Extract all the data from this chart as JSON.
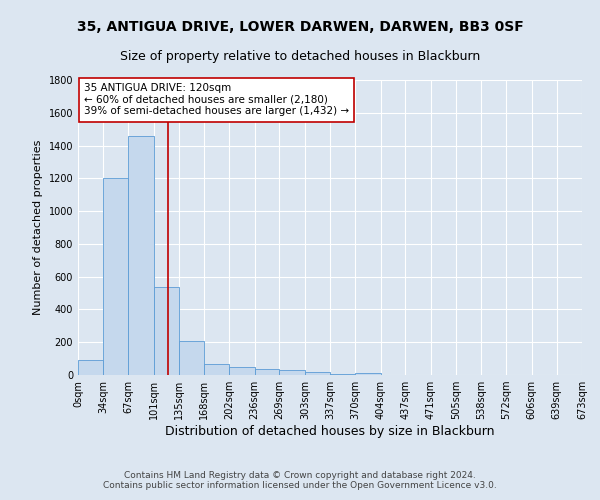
{
  "title1": "35, ANTIGUA DRIVE, LOWER DARWEN, DARWEN, BB3 0SF",
  "title2": "Size of property relative to detached houses in Blackburn",
  "xlabel": "Distribution of detached houses by size in Blackburn",
  "ylabel": "Number of detached properties",
  "bar_edges": [
    0,
    34,
    67,
    101,
    135,
    168,
    202,
    236,
    269,
    303,
    337,
    370,
    404,
    437,
    471,
    505,
    538,
    572,
    606,
    639,
    673
  ],
  "bar_heights": [
    90,
    1200,
    1460,
    535,
    205,
    68,
    50,
    38,
    28,
    20,
    5,
    12,
    0,
    0,
    0,
    0,
    0,
    0,
    0,
    0
  ],
  "bar_color": "#c5d8ed",
  "bar_edgecolor": "#5b9bd5",
  "property_size": 120,
  "vline_color": "#c00000",
  "annotation_line1": "35 ANTIGUA DRIVE: 120sqm",
  "annotation_line2": "← 60% of detached houses are smaller (2,180)",
  "annotation_line3": "39% of semi-detached houses are larger (1,432) →",
  "annotation_box_edgecolor": "#c00000",
  "annotation_box_facecolor": "#ffffff",
  "ylim": [
    0,
    1800
  ],
  "yticks": [
    0,
    200,
    400,
    600,
    800,
    1000,
    1200,
    1400,
    1600,
    1800
  ],
  "background_color": "#dce6f1",
  "plot_bg_color": "#dce6f1",
  "grid_color": "#ffffff",
  "footer_text": "Contains HM Land Registry data © Crown copyright and database right 2024.\nContains public sector information licensed under the Open Government Licence v3.0.",
  "title1_fontsize": 10,
  "title2_fontsize": 9,
  "xlabel_fontsize": 9,
  "ylabel_fontsize": 8,
  "tick_fontsize": 7,
  "annotation_fontsize": 7.5,
  "footer_fontsize": 6.5
}
